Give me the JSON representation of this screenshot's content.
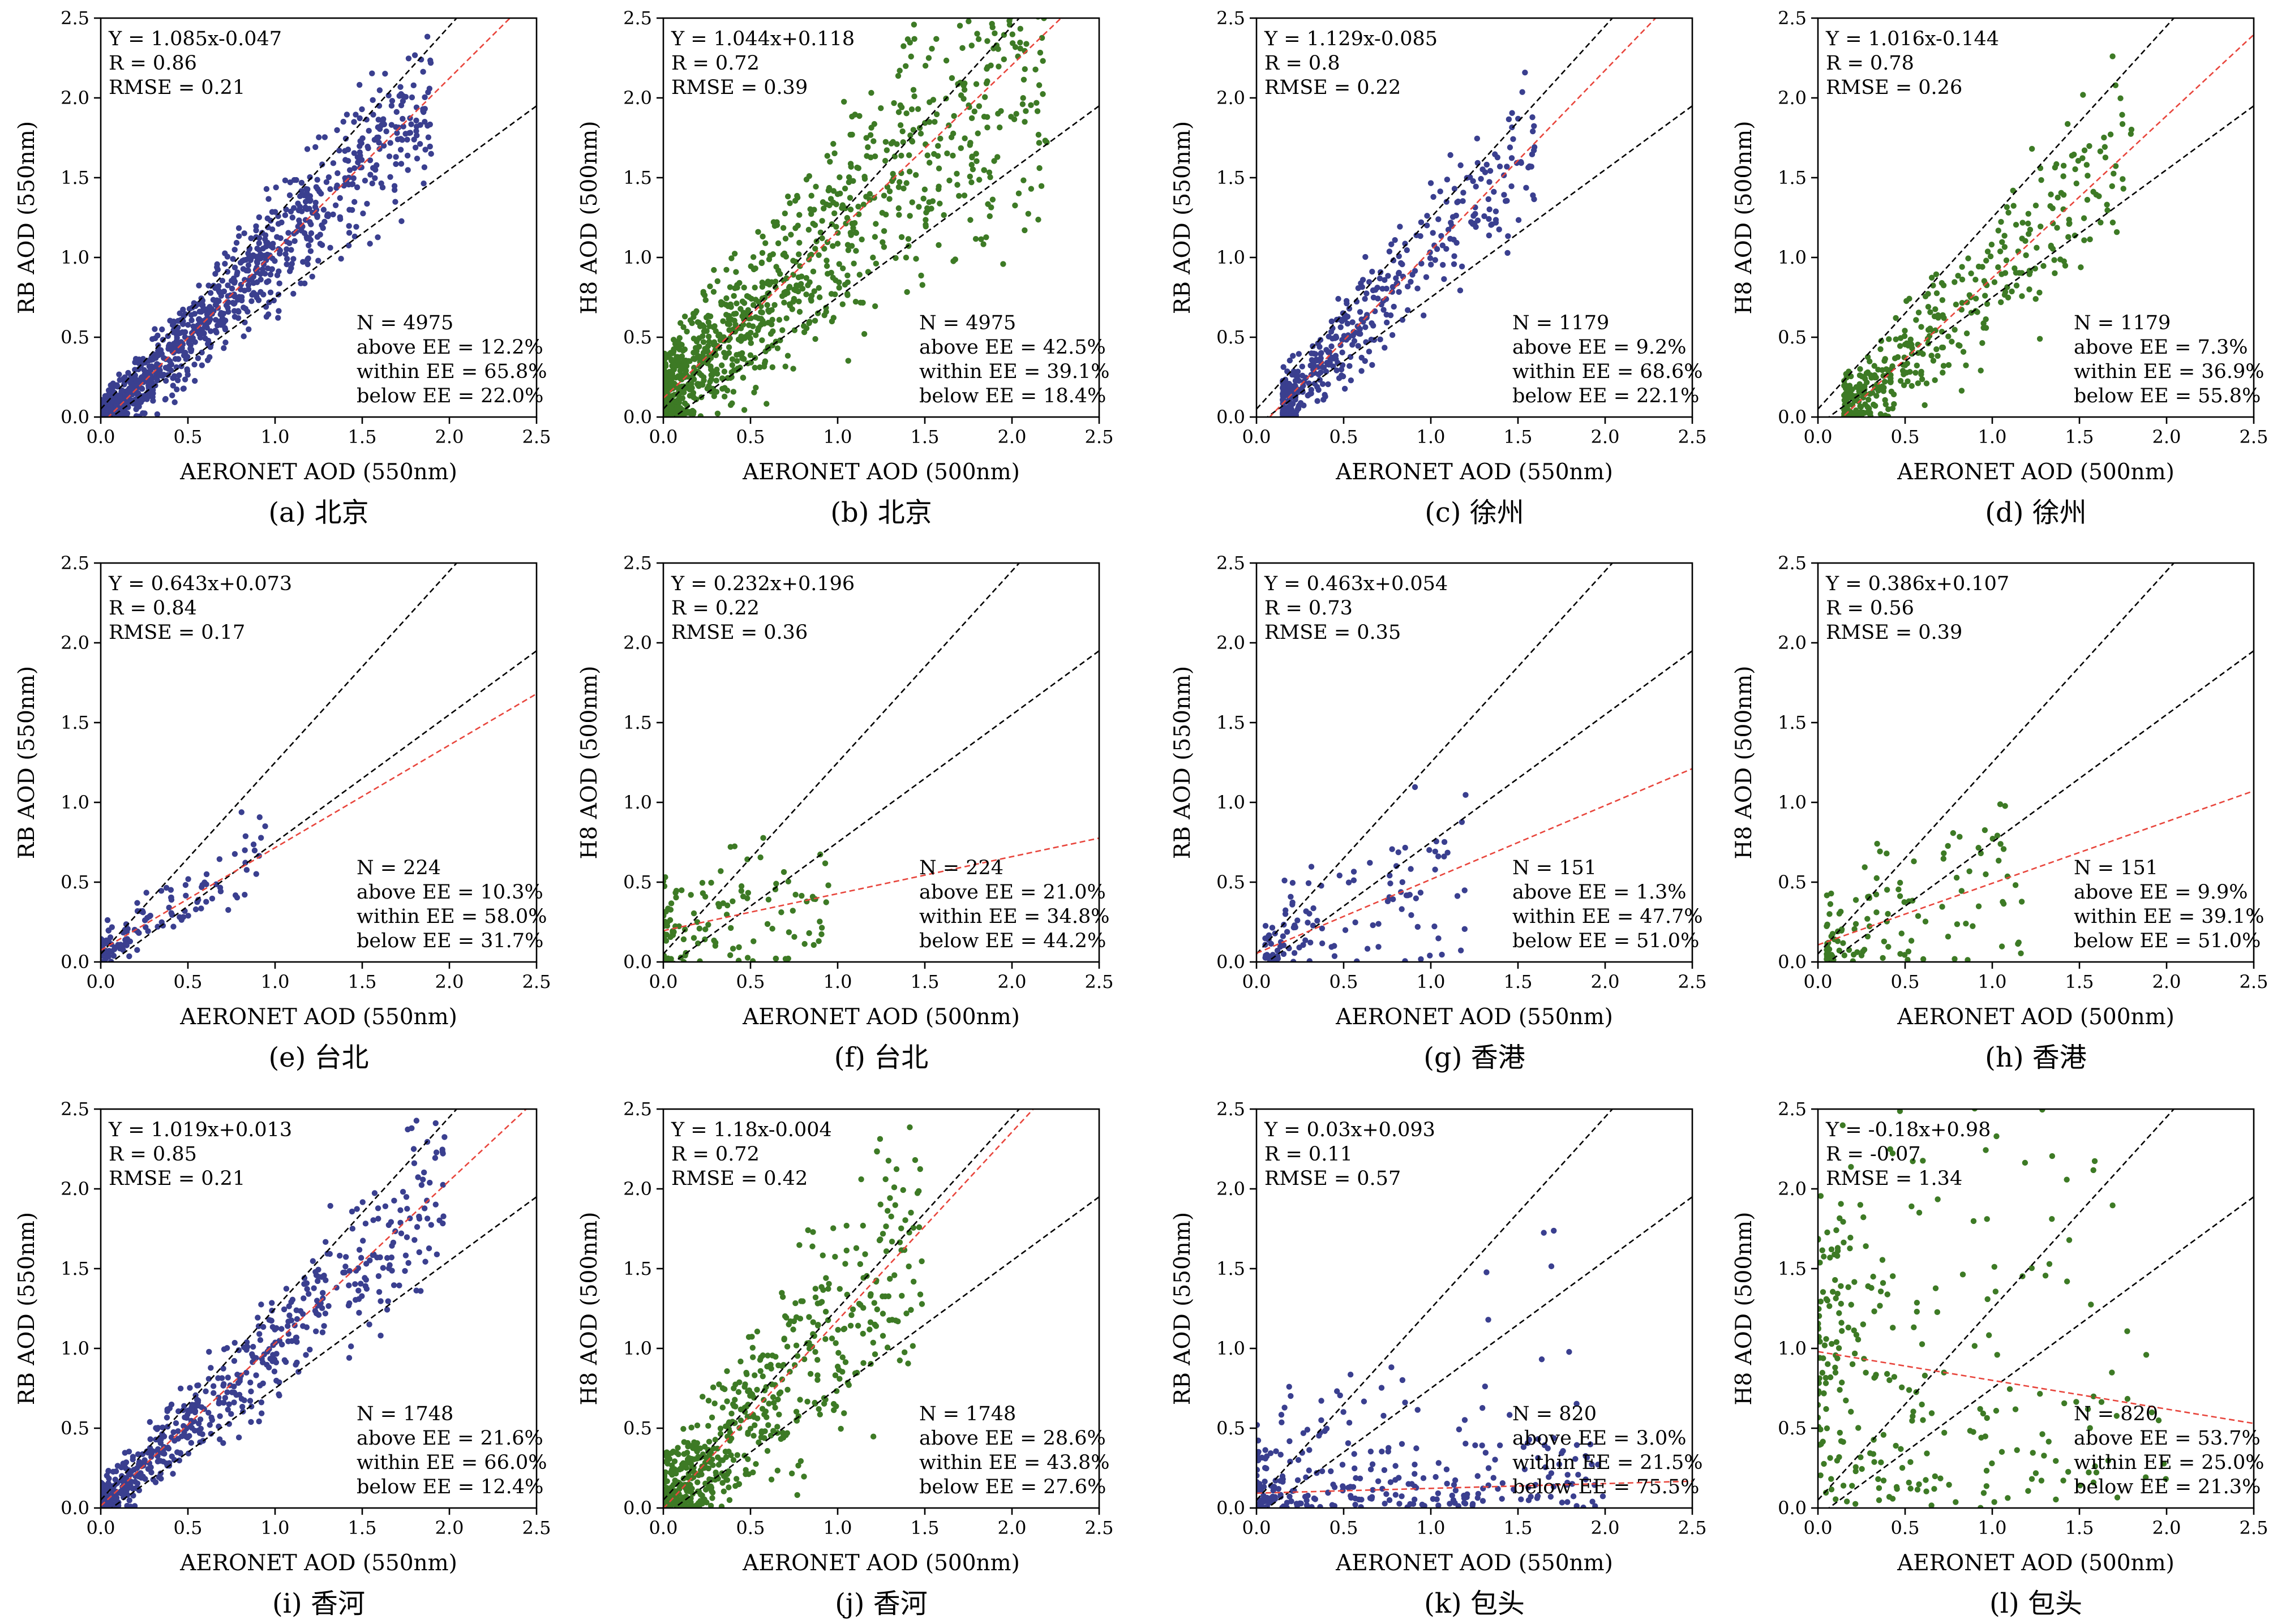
{
  "figure": {
    "colors": {
      "blue": "#3a3f8f",
      "green": "#3d7a25",
      "fit_line": "#e8453c",
      "ee_lines": "#000000"
    },
    "ticks": [
      "0.0",
      "0.5",
      "1.0",
      "1.5",
      "2.0",
      "2.5"
    ]
  },
  "chart_data": [
    {
      "type": "scatter",
      "id": "a",
      "caption": "(a) 北京",
      "xlabel": "AERONET AOD (550nm)",
      "ylabel": "RB AOD (550nm)",
      "xlim": [
        0,
        2.5
      ],
      "ylim": [
        0,
        2.5
      ],
      "color": "blue",
      "fit": {
        "slope": 1.085,
        "intercept": -0.047
      },
      "ee": {
        "abs": 0.05,
        "rel": 0.2
      },
      "stats": {
        "equation": "Y = 1.085x-0.047",
        "R": "R = 0.86",
        "RMSE": "RMSE = 0.21",
        "N": "N = 4975",
        "above": "above EE = 12.2%",
        "within": "within EE = 65.8%",
        "below": "below EE = 22.0%"
      },
      "n": 4975,
      "r": 0.86,
      "rmse": 0.21,
      "above_pct": 12.2,
      "within_pct": 65.8,
      "below_pct": 22.0,
      "x_range": [
        0.0,
        1.9
      ]
    },
    {
      "type": "scatter",
      "id": "b",
      "caption": "(b) 北京",
      "xlabel": "AERONET AOD (500nm)",
      "ylabel": "H8 AOD (500nm)",
      "xlim": [
        0,
        2.5
      ],
      "ylim": [
        0,
        2.5
      ],
      "color": "green",
      "fit": {
        "slope": 1.044,
        "intercept": 0.118
      },
      "ee": {
        "abs": 0.05,
        "rel": 0.2
      },
      "stats": {
        "equation": "Y = 1.044x+0.118",
        "R": "R = 0.72",
        "RMSE": "RMSE = 0.39",
        "N": "N = 4975",
        "above": "above EE = 42.5%",
        "within": "within EE = 39.1%",
        "below": "below EE = 18.4%"
      },
      "n": 4975,
      "r": 0.72,
      "rmse": 0.39,
      "above_pct": 42.5,
      "within_pct": 39.1,
      "below_pct": 18.4,
      "x_range": [
        0.0,
        2.2
      ]
    },
    {
      "type": "scatter",
      "id": "c",
      "caption": "(c) 徐州",
      "xlabel": "AERONET AOD (550nm)",
      "ylabel": "RB AOD (550nm)",
      "xlim": [
        0,
        2.5
      ],
      "ylim": [
        0,
        2.5
      ],
      "color": "blue",
      "fit": {
        "slope": 1.129,
        "intercept": -0.085
      },
      "ee": {
        "abs": 0.05,
        "rel": 0.2
      },
      "stats": {
        "equation": "Y = 1.129x-0.085",
        "R": "R = 0.8",
        "RMSE": "RMSE = 0.22",
        "N": "N = 1179",
        "above": "above EE = 9.2%",
        "within": "within EE = 68.6%",
        "below": "below EE = 22.1%"
      },
      "n": 1179,
      "r": 0.8,
      "rmse": 0.22,
      "above_pct": 9.2,
      "within_pct": 68.6,
      "below_pct": 22.1,
      "x_range": [
        0.15,
        1.6
      ]
    },
    {
      "type": "scatter",
      "id": "d",
      "caption": "(d) 徐州",
      "xlabel": "AERONET AOD (500nm)",
      "ylabel": "H8 AOD (500nm)",
      "xlim": [
        0,
        2.5
      ],
      "ylim": [
        0,
        2.5
      ],
      "color": "green",
      "fit": {
        "slope": 1.016,
        "intercept": -0.144
      },
      "ee": {
        "abs": 0.05,
        "rel": 0.2
      },
      "stats": {
        "equation": "Y = 1.016x-0.144",
        "R": "R = 0.78",
        "RMSE": "RMSE = 0.26",
        "N": "N = 1179",
        "above": "above EE = 7.3%",
        "within": "within EE = 36.9%",
        "below": "below EE = 55.8%"
      },
      "n": 1179,
      "r": 0.78,
      "rmse": 0.26,
      "above_pct": 7.3,
      "within_pct": 36.9,
      "below_pct": 55.8,
      "x_range": [
        0.15,
        1.8
      ]
    },
    {
      "type": "scatter",
      "id": "e",
      "caption": "(e) 台北",
      "xlabel": "AERONET AOD (550nm)",
      "ylabel": "RB AOD (550nm)",
      "xlim": [
        0,
        2.5
      ],
      "ylim": [
        0,
        2.5
      ],
      "color": "blue",
      "fit": {
        "slope": 0.643,
        "intercept": 0.073
      },
      "ee": {
        "abs": 0.05,
        "rel": 0.2
      },
      "stats": {
        "equation": "Y = 0.643x+0.073",
        "R": "R = 0.84",
        "RMSE": "RMSE = 0.17",
        "N": "N = 224",
        "above": "above EE = 10.3%",
        "within": "within EE = 58.0%",
        "below": "below EE = 31.7%"
      },
      "n": 224,
      "r": 0.84,
      "rmse": 0.17,
      "above_pct": 10.3,
      "within_pct": 58.0,
      "below_pct": 31.7,
      "x_range": [
        0.0,
        0.95
      ]
    },
    {
      "type": "scatter",
      "id": "f",
      "caption": "(f) 台北",
      "xlabel": "AERONET AOD (500nm)",
      "ylabel": "H8 AOD (500nm)",
      "xlim": [
        0,
        2.5
      ],
      "ylim": [
        0,
        2.5
      ],
      "color": "green",
      "fit": {
        "slope": 0.232,
        "intercept": 0.196
      },
      "ee": {
        "abs": 0.05,
        "rel": 0.2
      },
      "stats": {
        "equation": "Y = 0.232x+0.196",
        "R": "R = 0.22",
        "RMSE": "RMSE = 0.36",
        "N": "N = 224",
        "above": "above EE = 21.0%",
        "within": "within EE = 34.8%",
        "below": "below EE = 44.2%"
      },
      "n": 224,
      "r": 0.22,
      "rmse": 0.36,
      "above_pct": 21.0,
      "within_pct": 34.8,
      "below_pct": 44.2,
      "x_range": [
        0.0,
        0.95
      ]
    },
    {
      "type": "scatter",
      "id": "g",
      "caption": "(g) 香港",
      "xlabel": "AERONET AOD (550nm)",
      "ylabel": "RB AOD (550nm)",
      "xlim": [
        0,
        2.5
      ],
      "ylim": [
        0,
        2.5
      ],
      "color": "blue",
      "fit": {
        "slope": 0.463,
        "intercept": 0.054
      },
      "ee": {
        "abs": 0.05,
        "rel": 0.2
      },
      "stats": {
        "equation": "Y = 0.463x+0.054",
        "R": "R = 0.73",
        "RMSE": "RMSE = 0.35",
        "N": "N = 151",
        "above": "above EE = 1.3%",
        "within": "within EE = 47.7%",
        "below": "below EE = 51.0%"
      },
      "n": 151,
      "r": 0.73,
      "rmse": 0.35,
      "above_pct": 1.3,
      "within_pct": 47.7,
      "below_pct": 51.0,
      "x_range": [
        0.05,
        1.2
      ]
    },
    {
      "type": "scatter",
      "id": "h",
      "caption": "(h) 香港",
      "xlabel": "AERONET AOD (500nm)",
      "ylabel": "H8 AOD (500nm)",
      "xlim": [
        0,
        2.5
      ],
      "ylim": [
        0,
        2.5
      ],
      "color": "green",
      "fit": {
        "slope": 0.386,
        "intercept": 0.107
      },
      "ee": {
        "abs": 0.05,
        "rel": 0.2
      },
      "stats": {
        "equation": "Y = 0.386x+0.107",
        "R": "R = 0.56",
        "RMSE": "RMSE = 0.39",
        "N": "N = 151",
        "above": "above EE = 9.9%",
        "within": "within EE = 39.1%",
        "below": "below EE = 51.0%"
      },
      "n": 151,
      "r": 0.56,
      "rmse": 0.39,
      "above_pct": 9.9,
      "within_pct": 39.1,
      "below_pct": 51.0,
      "x_range": [
        0.05,
        1.2
      ]
    },
    {
      "type": "scatter",
      "id": "i",
      "caption": "(i) 香河",
      "xlabel": "AERONET AOD (550nm)",
      "ylabel": "RB AOD (550nm)",
      "xlim": [
        0,
        2.5
      ],
      "ylim": [
        0,
        2.5
      ],
      "color": "blue",
      "fit": {
        "slope": 1.019,
        "intercept": 0.013
      },
      "ee": {
        "abs": 0.05,
        "rel": 0.2
      },
      "stats": {
        "equation": "Y = 1.019x+0.013",
        "R": "R = 0.85",
        "RMSE": "RMSE = 0.21",
        "N": "N = 1748",
        "above": "above EE = 21.6%",
        "within": "within EE = 66.0%",
        "below": "below EE = 12.4%"
      },
      "n": 1748,
      "r": 0.85,
      "rmse": 0.21,
      "above_pct": 21.6,
      "within_pct": 66.0,
      "below_pct": 12.4,
      "x_range": [
        0.0,
        2.0
      ]
    },
    {
      "type": "scatter",
      "id": "j",
      "caption": "(j) 香河",
      "xlabel": "AERONET AOD (500nm)",
      "ylabel": "H8 AOD (500nm)",
      "xlim": [
        0,
        2.5
      ],
      "ylim": [
        0,
        2.5
      ],
      "color": "green",
      "fit": {
        "slope": 1.18,
        "intercept": -0.004
      },
      "ee": {
        "abs": 0.05,
        "rel": 0.2
      },
      "stats": {
        "equation": "Y = 1.18x-0.004",
        "R": "R = 0.72",
        "RMSE": "RMSE = 0.42",
        "N": "N = 1748",
        "above": "above EE = 28.6%",
        "within": "within EE = 43.8%",
        "below": "below EE = 27.6%"
      },
      "n": 1748,
      "r": 0.72,
      "rmse": 0.42,
      "above_pct": 28.6,
      "within_pct": 43.8,
      "below_pct": 27.6,
      "x_range": [
        0.0,
        1.5
      ]
    },
    {
      "type": "scatter",
      "id": "k",
      "caption": "(k) 包头",
      "xlabel": "AERONET AOD (550nm)",
      "ylabel": "RB AOD (550nm)",
      "xlim": [
        0,
        2.5
      ],
      "ylim": [
        0,
        2.5
      ],
      "color": "blue",
      "fit": {
        "slope": 0.03,
        "intercept": 0.093
      },
      "ee": {
        "abs": 0.05,
        "rel": 0.2
      },
      "stats": {
        "equation": "Y = 0.03x+0.093",
        "R": "R = 0.11",
        "RMSE": "RMSE = 0.57",
        "N": "N = 820",
        "above": "above EE = 3.0%",
        "within": "within EE = 21.5%",
        "below": "below EE = 75.5%"
      },
      "n": 820,
      "r": 0.11,
      "rmse": 0.57,
      "above_pct": 3.0,
      "within_pct": 21.5,
      "below_pct": 75.5,
      "x_range": [
        0.0,
        2.0
      ]
    },
    {
      "type": "scatter",
      "id": "l",
      "caption": "(l) 包头",
      "xlabel": "AERONET AOD (500nm)",
      "ylabel": "H8 AOD (500nm)",
      "xlim": [
        0,
        2.5
      ],
      "ylim": [
        0,
        2.5
      ],
      "color": "green",
      "fit": {
        "slope": -0.18,
        "intercept": 0.98
      },
      "ee": {
        "abs": 0.05,
        "rel": 0.2
      },
      "stats": {
        "equation": "Y = -0.18x+0.98",
        "R": "R = -0.07",
        "RMSE": "RMSE = 1.34",
        "N": "N = 820",
        "above": "above EE = 53.7%",
        "within": "within EE = 25.0%",
        "below": "below EE = 21.3%"
      },
      "n": 820,
      "r": -0.07,
      "rmse": 1.34,
      "above_pct": 53.7,
      "within_pct": 25.0,
      "below_pct": 21.3,
      "x_range": [
        0.0,
        2.0
      ]
    }
  ]
}
